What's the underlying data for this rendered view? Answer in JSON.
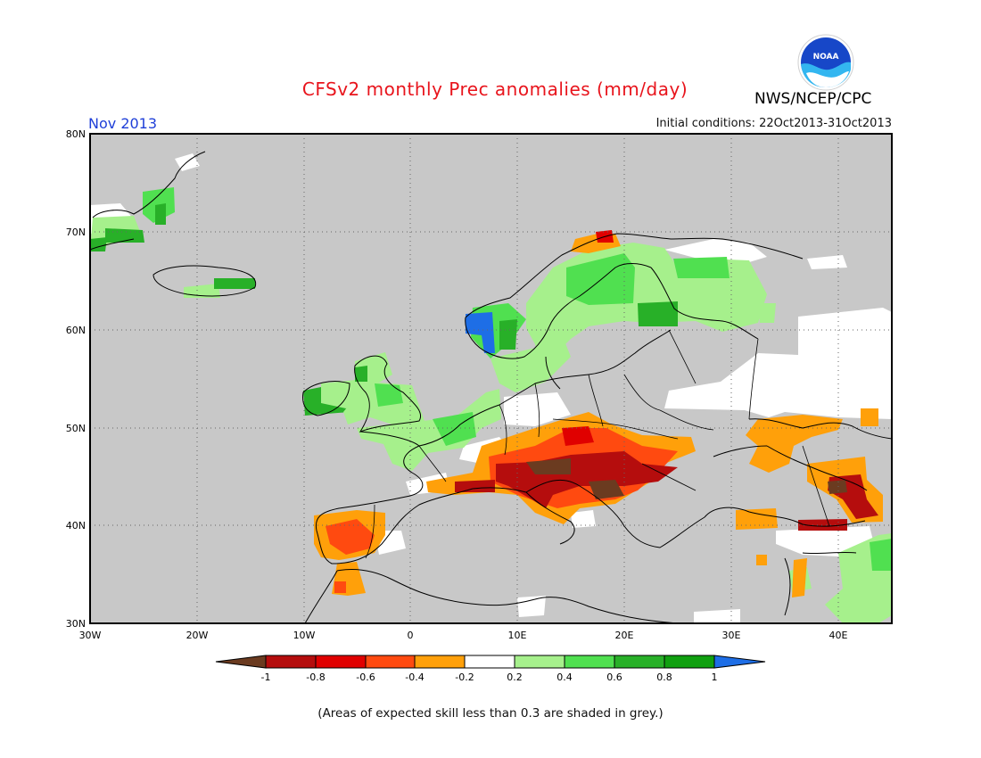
{
  "header": {
    "title": "CFSv2 monthly Prec anomalies (mm/day)",
    "agency": "NWS/NCEP/CPC",
    "logo_text": "NOAA",
    "month": "Nov 2013",
    "initial_conditions": "Initial conditions: 22Oct2013-31Oct2013"
  },
  "map": {
    "lon_range": [
      -30,
      45
    ],
    "lat_range": [
      30,
      80
    ],
    "lon_ticks": [
      "30W",
      "20W",
      "10W",
      "0",
      "10E",
      "20E",
      "30E",
      "40E"
    ],
    "lat_ticks": [
      "30N",
      "40N",
      "50N",
      "60N",
      "70N",
      "80N"
    ],
    "gridlines": "dotted",
    "low_skill_color": "#c8c8c8",
    "regions": [
      {
        "lon": -29.5,
        "lat": 71,
        "value": 0.3
      },
      {
        "lon": -28,
        "lat": 70.2,
        "value": 0.5
      },
      {
        "lon": -26,
        "lat": 69.8,
        "value": 0.7
      },
      {
        "lon": -23,
        "lat": 72,
        "value": 0.6
      },
      {
        "lon": -19,
        "lat": 64.8,
        "value": 0.6
      },
      {
        "lon": -8,
        "lat": 53.2,
        "value": 0.7
      },
      {
        "lon": -3,
        "lat": 52,
        "value": 0.3
      },
      {
        "lon": -1,
        "lat": 54.5,
        "value": 0.4
      },
      {
        "lon": 3,
        "lat": 49.5,
        "value": 0.3
      },
      {
        "lon": 7.5,
        "lat": 60.7,
        "value": 1.0
      },
      {
        "lon": 6.5,
        "lat": 62,
        "value": 0.6
      },
      {
        "lon": 9,
        "lat": 64,
        "value": 0.3
      },
      {
        "lon": 13,
        "lat": 62,
        "value": 0.3
      },
      {
        "lon": 15,
        "lat": 63.5,
        "value": 0.5
      },
      {
        "lon": 18,
        "lat": 66.5,
        "value": 0.4
      },
      {
        "lon": 21.5,
        "lat": 68,
        "value": 0.3
      },
      {
        "lon": 24.5,
        "lat": 65.5,
        "value": 0.4
      },
      {
        "lon": 23.5,
        "lat": 61.5,
        "value": 0.7
      },
      {
        "lon": 18,
        "lat": 69.5,
        "value": -0.5
      },
      {
        "lon": 11,
        "lat": 48.5,
        "value": -0.3
      },
      {
        "lon": 14,
        "lat": 47.5,
        "value": -0.5
      },
      {
        "lon": 19,
        "lat": 47.3,
        "value": -0.6
      },
      {
        "lon": 22,
        "lat": 45,
        "value": -0.7
      },
      {
        "lon": 11.5,
        "lat": 45.2,
        "value": -0.8
      },
      {
        "lon": 15,
        "lat": 45.8,
        "value": -1.0
      },
      {
        "lon": 15.5,
        "lat": 43.5,
        "value": -0.6
      },
      {
        "lon": 17.5,
        "lat": 43,
        "value": -0.9
      },
      {
        "lon": 5,
        "lat": 43.5,
        "value": -0.8
      },
      {
        "lon": 2,
        "lat": 43.5,
        "value": -0.4
      },
      {
        "lon": 30,
        "lat": 48.5,
        "value": -0.3
      },
      {
        "lon": 33.5,
        "lat": 47,
        "value": -0.3
      },
      {
        "lon": 39,
        "lat": 43,
        "value": -0.4
      },
      {
        "lon": 41,
        "lat": 43.5,
        "value": -0.9
      },
      {
        "lon": 39,
        "lat": 39.8,
        "value": -0.8
      },
      {
        "lon": 32,
        "lat": 40,
        "value": -0.3
      },
      {
        "lon": 36,
        "lat": 36,
        "value": -0.3
      },
      {
        "lon": -6,
        "lat": 38.5,
        "value": -0.6
      },
      {
        "lon": -7.5,
        "lat": 37.5,
        "value": -0.4
      },
      {
        "lon": -4,
        "lat": 34.5,
        "value": -0.4
      },
      {
        "lon": 43.5,
        "lat": 34,
        "value": 0.3
      },
      {
        "lon": 35,
        "lat": 32.5,
        "value": 0.3
      }
    ]
  },
  "colorbar": {
    "labels": [
      "-1",
      "-0.8",
      "-0.6",
      "-0.4",
      "-0.2",
      "0.2",
      "0.4",
      "0.6",
      "0.8",
      "1"
    ],
    "colors": [
      "#6b3b20",
      "#b50d0d",
      "#e00000",
      "#ff4a10",
      "#ffa00a",
      "#ffffff",
      "#a6f08c",
      "#50e050",
      "#28b028",
      "#10a010",
      "#1e6ee6"
    ]
  },
  "footnote": "(Areas of expected skill less than 0.3 are shaded in grey.)"
}
